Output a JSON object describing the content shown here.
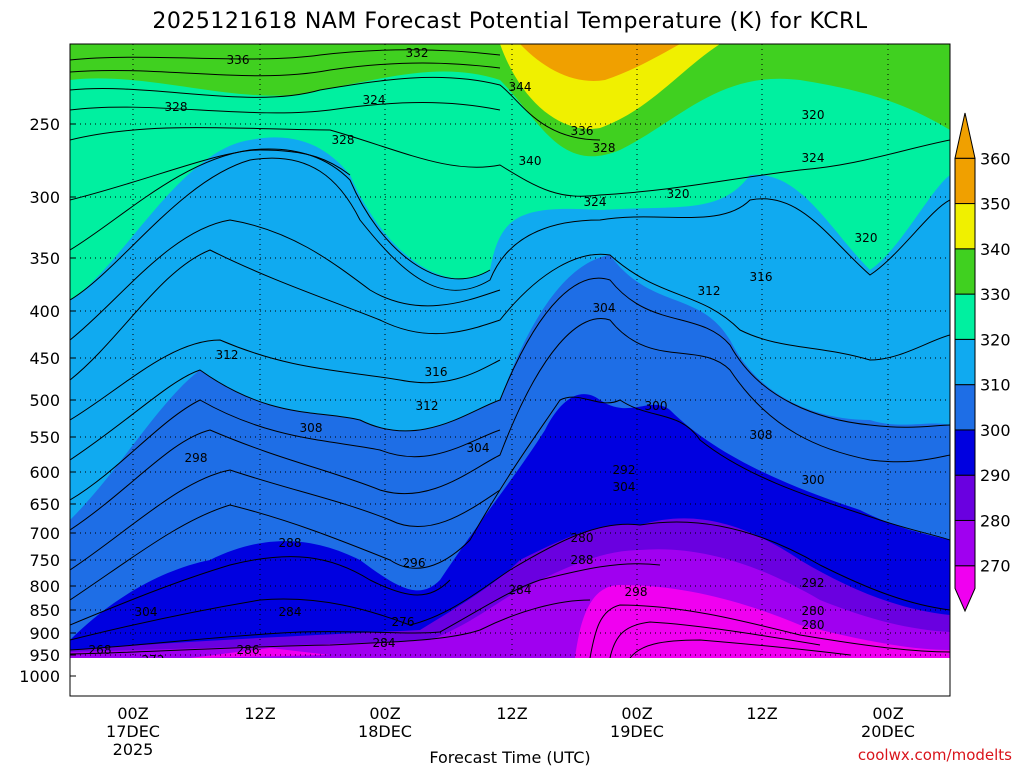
{
  "chart_data": {
    "type": "heatmap",
    "title": "2025121618 NAM Forecast Potential Temperature (K) for KCRL",
    "xlabel": "Forecast Time (UTC)",
    "credit": "coolwx.com/modelts",
    "y_ticks": [
      "250",
      "300",
      "350",
      "400",
      "450",
      "500",
      "550",
      "600",
      "650",
      "700",
      "750",
      "800",
      "850",
      "900",
      "950",
      "1000"
    ],
    "x_ticks": [
      {
        "line1": "00Z",
        "line2": "17DEC",
        "line3": "2025"
      },
      {
        "line1": "12Z",
        "line2": "",
        "line3": ""
      },
      {
        "line1": "00Z",
        "line2": "18DEC",
        "line3": ""
      },
      {
        "line1": "12Z",
        "line2": "",
        "line3": ""
      },
      {
        "line1": "00Z",
        "line2": "19DEC",
        "line3": ""
      },
      {
        "line1": "12Z",
        "line2": "",
        "line3": ""
      },
      {
        "line1": "00Z",
        "line2": "20DEC",
        "line3": ""
      }
    ],
    "colorbar": {
      "levels": [
        "270",
        "280",
        "290",
        "300",
        "310",
        "320",
        "330",
        "340",
        "350",
        "360"
      ],
      "colors": [
        "#f000f0",
        "#a000f0",
        "#6a00e0",
        "#0000e0",
        "#1e6ee6",
        "#10aaf0",
        "#00f0a0",
        "#40d020",
        "#f0f000",
        "#f0a000"
      ]
    },
    "contour_labels": [
      "336",
      "332",
      "344",
      "328",
      "324",
      "320",
      "328",
      "340",
      "336",
      "328",
      "324",
      "324",
      "320",
      "320",
      "316",
      "312",
      "304",
      "312",
      "316",
      "312",
      "300",
      "308",
      "308",
      "304",
      "298",
      "292",
      "304",
      "300",
      "288",
      "280",
      "288",
      "296",
      "292",
      "304",
      "284",
      "276",
      "284",
      "298",
      "280",
      "280",
      "284",
      "286",
      "268",
      "272"
    ]
  }
}
